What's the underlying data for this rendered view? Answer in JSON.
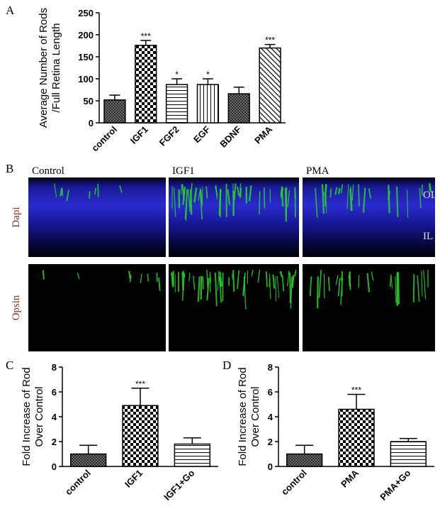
{
  "panel_labels": [
    "A",
    "B",
    "C",
    "D"
  ],
  "chart_data": [
    {
      "type": "bar",
      "y_label": [
        "Average Number of Rods",
        "/Full Retina Length"
      ],
      "categories": [
        "control",
        "IGF1",
        "FGF2",
        "EGF",
        "BDNF",
        "PMA"
      ],
      "values": [
        52,
        176,
        87,
        87,
        66,
        170
      ],
      "errors": [
        11,
        11,
        13,
        13,
        15,
        8
      ],
      "annotations": [
        null,
        "***",
        "*",
        "*",
        null,
        "***"
      ],
      "patterns": [
        "crosshatch",
        "checker",
        "hlines",
        "vlines",
        "crosshatch",
        "diagonal"
      ],
      "color": "#000000",
      "ylim": [
        0,
        250
      ],
      "yticks": [
        0,
        50,
        100,
        150,
        200,
        250
      ]
    },
    {
      "type": "bar",
      "y_label": [
        "Fold Increase of Rod",
        "Over Control"
      ],
      "categories": [
        "control",
        "IGF1",
        "IGF1+Go"
      ],
      "values": [
        1.0,
        4.9,
        1.8
      ],
      "errors": [
        0.7,
        1.4,
        0.5
      ],
      "annotations": [
        null,
        "***",
        null
      ],
      "patterns": [
        "crosshatch",
        "checker",
        "hlines"
      ],
      "color": "#000000",
      "ylim": [
        0,
        8
      ],
      "yticks": [
        0,
        2,
        4,
        6,
        8
      ]
    },
    {
      "type": "bar",
      "y_label": [
        "Fold Increase of Rod",
        "Over Control"
      ],
      "categories": [
        "control",
        "PMA",
        "PMA+Go"
      ],
      "values": [
        1.0,
        4.6,
        2.0
      ],
      "errors": [
        0.7,
        1.2,
        0.25
      ],
      "annotations": [
        null,
        "***",
        null
      ],
      "patterns": [
        "crosshatch",
        "checker",
        "hlines"
      ],
      "color": "#000000",
      "ylim": [
        0,
        8
      ],
      "yticks": [
        0,
        2,
        4,
        6,
        8
      ]
    }
  ],
  "micrographs": {
    "columns": [
      "Control",
      "IGF1",
      "PMA"
    ],
    "rows": [
      "Dapi",
      "Opsin"
    ],
    "layers": [
      "OL",
      "IL"
    ]
  }
}
